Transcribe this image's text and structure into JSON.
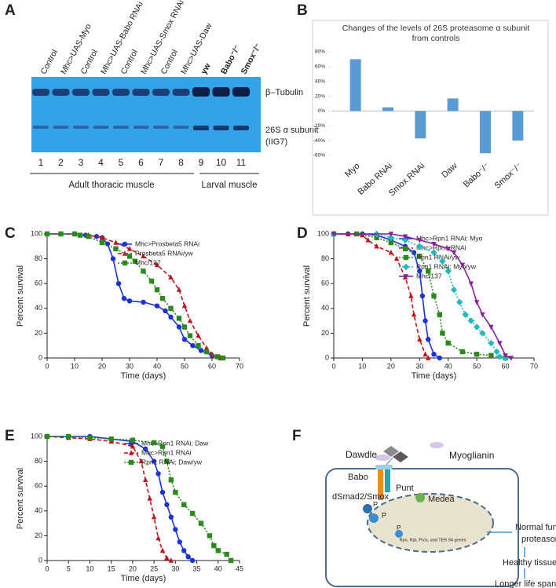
{
  "panel_a": {
    "panel_label": "A",
    "lane_labels": [
      "Control",
      "Mhc>UAS-Myo",
      "Control",
      "Mhc>UAS-Babo RNAi",
      "Control",
      "Mhc>UAS-Smox RNAi",
      "Control",
      "Mhc>UAS-Daw",
      "yw",
      "Babo⁻/⁻",
      "Smox⁻/⁻"
    ],
    "lane_numbers": [
      "1",
      "2",
      "3",
      "4",
      "5",
      "6",
      "7",
      "8",
      "9",
      "10",
      "11"
    ],
    "band_top": "β–Tubulin",
    "band_bottom": "26S α subunit",
    "antibody": "(IIG7)",
    "group_adult": "Adult thoracic muscle",
    "group_larval": "Larval muscle"
  },
  "chart_data": [
    {
      "type": "bar",
      "panel_label": "B",
      "title": "Changes of the levels of 26S proteasome α subunit from controls",
      "categories": [
        "Myo",
        "Babo RNAi",
        "Smox RNAi",
        "Daw",
        "Babo⁻/⁻",
        "Smox⁻/⁻"
      ],
      "values": [
        70,
        5,
        -37,
        17,
        -57,
        -40
      ],
      "color": "#5b9bd5",
      "ylim": [
        -60,
        80
      ],
      "yticks": [
        {
          "value": -60,
          "label": "-60%"
        },
        {
          "value": -40,
          "label": "-40%"
        },
        {
          "value": -20,
          "label": "-20%"
        },
        {
          "value": 0,
          "label": "0%"
        },
        {
          "value": 20,
          "label": "20%"
        },
        {
          "value": 40,
          "label": "40%"
        },
        {
          "value": 60,
          "label": "60%"
        },
        {
          "value": 80,
          "label": "80%"
        }
      ]
    },
    {
      "type": "line",
      "panel_label": "C",
      "xlabel": "Time (days)",
      "ylabel": "Percent survival",
      "xlim": [
        0,
        70
      ],
      "xticks": [
        0,
        10,
        20,
        30,
        40,
        50,
        60,
        70
      ],
      "ylim": [
        0,
        100
      ],
      "yticks": [
        0,
        20,
        40,
        60,
        80,
        100
      ],
      "legend": "upper right",
      "series": [
        {
          "name": "Mhc>Prosbeta5 RNAi",
          "color": "#1a32d8",
          "marker": "circle",
          "dash": "solid",
          "x": [
            0,
            5,
            10,
            14,
            18,
            20,
            22,
            24,
            26,
            28,
            30,
            35,
            40,
            43,
            45,
            48,
            50,
            53,
            56,
            60,
            63
          ],
          "values": [
            100,
            100,
            100,
            99,
            98,
            97,
            92,
            80,
            60,
            48,
            46,
            45,
            42,
            38,
            33,
            25,
            15,
            10,
            6,
            2,
            0
          ]
        },
        {
          "name": "Prosbeta5 RNAi/yw",
          "color": "#c0141c",
          "marker": "triangle",
          "dash": "dashed",
          "x": [
            0,
            5,
            10,
            15,
            20,
            25,
            30,
            35,
            40,
            45,
            48,
            50,
            52,
            55,
            58,
            60,
            63
          ],
          "values": [
            100,
            100,
            100,
            99,
            97,
            93,
            88,
            82,
            75,
            65,
            55,
            42,
            30,
            18,
            8,
            3,
            0
          ]
        },
        {
          "name": "Mhc/137",
          "color": "#2a8a1e",
          "marker": "square",
          "dash": "dotted",
          "x": [
            0,
            5,
            10,
            12,
            15,
            20,
            25,
            30,
            32,
            35,
            38,
            40,
            42,
            45,
            48,
            50,
            52,
            55,
            58,
            62,
            64
          ],
          "values": [
            100,
            100,
            100,
            99,
            98,
            93,
            88,
            82,
            78,
            70,
            62,
            55,
            48,
            40,
            32,
            25,
            18,
            10,
            5,
            1,
            0
          ]
        }
      ]
    },
    {
      "type": "line",
      "panel_label": "D",
      "xlabel": "Time (days)",
      "ylabel": "Percent survival",
      "xlim": [
        0,
        70
      ],
      "xticks": [
        0,
        10,
        20,
        30,
        40,
        50,
        60,
        70
      ],
      "ylim": [
        0,
        100
      ],
      "yticks": [
        0,
        20,
        40,
        60,
        80,
        100
      ],
      "legend": "upper right",
      "series": [
        {
          "name": "Mhc>Rpn1 RNAi; Myo",
          "color": "#1a32d8",
          "marker": "circle",
          "dash": "solid",
          "x": [
            0,
            5,
            10,
            15,
            20,
            25,
            28,
            30,
            31,
            32,
            33,
            35,
            37
          ],
          "values": [
            100,
            100,
            100,
            99,
            95,
            90,
            85,
            70,
            50,
            30,
            15,
            3,
            0
          ]
        },
        {
          "name": "Mhc>Rpn1 RNAi",
          "color": "#c0141c",
          "marker": "triangle",
          "dash": "dashed",
          "x": [
            0,
            5,
            10,
            12,
            15,
            20,
            22,
            25,
            27,
            28,
            30,
            32,
            33
          ],
          "values": [
            100,
            100,
            99,
            95,
            90,
            85,
            80,
            65,
            50,
            35,
            15,
            3,
            0
          ]
        },
        {
          "name": "Rpn1 RNAi/yw",
          "color": "#2a8a1e",
          "marker": "square",
          "dash": "dotted",
          "x": [
            0,
            8,
            15,
            20,
            25,
            30,
            33,
            35,
            37,
            38,
            40,
            45,
            50,
            55,
            60
          ],
          "values": [
            100,
            100,
            97,
            93,
            88,
            82,
            70,
            50,
            35,
            20,
            12,
            5,
            3,
            2,
            0
          ]
        },
        {
          "name": "Rpn1 RNAi; Myo/yw",
          "color": "#22b8c0",
          "marker": "diamond",
          "dash": "dotted",
          "x": [
            0,
            15,
            20,
            25,
            30,
            35,
            38,
            40,
            42,
            44,
            46,
            48,
            50,
            52,
            55,
            57,
            58,
            60
          ],
          "values": [
            100,
            100,
            97,
            95,
            90,
            85,
            78,
            70,
            55,
            45,
            35,
            30,
            25,
            20,
            12,
            5,
            1,
            0
          ]
        },
        {
          "name": "Mhc/137",
          "color": "#8a1f9a",
          "marker": "triangle-down",
          "dash": "solid",
          "x": [
            0,
            20,
            25,
            30,
            35,
            40,
            42,
            45,
            48,
            50,
            52,
            55,
            58,
            60,
            62
          ],
          "values": [
            100,
            100,
            98,
            95,
            92,
            88,
            85,
            75,
            60,
            45,
            35,
            25,
            12,
            2,
            0
          ]
        }
      ]
    },
    {
      "type": "line",
      "panel_label": "E",
      "xlabel": "Time (days)",
      "ylabel": "Percent survival",
      "xlim": [
        0,
        45
      ],
      "xticks": [
        0,
        5,
        10,
        15,
        20,
        25,
        30,
        35,
        40,
        45
      ],
      "ylim": [
        0,
        100
      ],
      "yticks": [
        0,
        20,
        40,
        60,
        80,
        100
      ],
      "legend": "upper right",
      "series": [
        {
          "name": "Mhc>Rpn1 RNAi; Daw",
          "color": "#1a32d8",
          "marker": "circle",
          "dash": "solid",
          "x": [
            0,
            5,
            10,
            15,
            20,
            23,
            25,
            26,
            27,
            28,
            29,
            30,
            31,
            32,
            33,
            34
          ],
          "values": [
            100,
            100,
            100,
            98,
            96,
            90,
            80,
            70,
            55,
            45,
            35,
            25,
            15,
            8,
            3,
            0
          ]
        },
        {
          "name": "Mhc>Rpn1 RNAi",
          "color": "#c0141c",
          "marker": "triangle",
          "dash": "dashed",
          "x": [
            0,
            5,
            10,
            15,
            20,
            22,
            23,
            24,
            25,
            26,
            27,
            28,
            29
          ],
          "values": [
            100,
            99,
            98,
            96,
            92,
            80,
            65,
            50,
            35,
            18,
            8,
            2,
            0
          ]
        },
        {
          "name": "Rpn1 RNAi; Daw/yw",
          "color": "#2a8a1e",
          "marker": "square",
          "dash": "dotted",
          "x": [
            0,
            5,
            10,
            15,
            20,
            25,
            27,
            28,
            29,
            30,
            32,
            34,
            36,
            38,
            39,
            40,
            42,
            43
          ],
          "values": [
            100,
            100,
            99,
            98,
            97,
            95,
            92,
            80,
            65,
            55,
            45,
            38,
            30,
            20,
            12,
            8,
            5,
            0
          ]
        }
      ]
    }
  ],
  "panel_f": {
    "panel_label": "F",
    "ligand_1": "Dawdle",
    "ligand_2": "Myoglianin",
    "receptor_1": "Babo",
    "receptor_2": "Punt",
    "phospho": "P",
    "smad": "dSmad2/Smox",
    "phospho_2": "P",
    "cosmad": "Medea",
    "phospho_3": "P",
    "genes": "Rpn, Rpt, Pros, and TER 94 genes",
    "outcome_1_lines": [
      "Normal function of",
      "proteasomes"
    ],
    "outcome_2": "Healthy tissues",
    "outcome_3": "Longer life span"
  }
}
